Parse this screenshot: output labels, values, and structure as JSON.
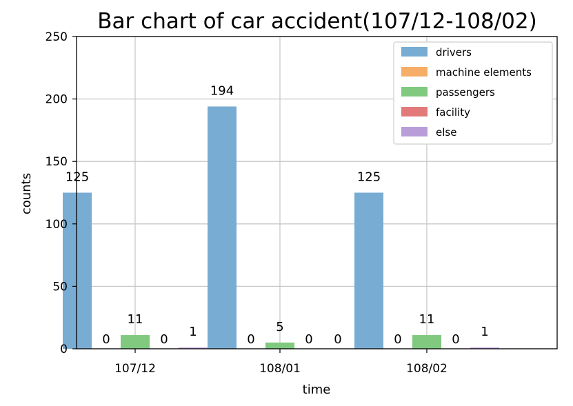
{
  "chart_data": {
    "type": "bar",
    "title": "Bar chart of car accident(107/12-108/02)",
    "xlabel": "time",
    "ylabel": "counts",
    "categories": [
      "107/12",
      "108/01",
      "108/02"
    ],
    "ylim": [
      0,
      250
    ],
    "yticks": [
      0,
      50,
      100,
      150,
      200,
      250
    ],
    "grid": true,
    "legend_position": "top-right",
    "series": [
      {
        "name": "drivers",
        "color": "#78acd3",
        "values": [
          125,
          194,
          125
        ]
      },
      {
        "name": "machine elements",
        "color": "#f6ad67",
        "values": [
          0,
          0,
          0
        ]
      },
      {
        "name": "passengers",
        "color": "#80c97f",
        "values": [
          11,
          5,
          11
        ]
      },
      {
        "name": "facility",
        "color": "#e27a7a",
        "values": [
          0,
          0,
          0
        ]
      },
      {
        "name": "else",
        "color": "#b89dd9",
        "values": [
          1,
          0,
          1
        ]
      }
    ]
  }
}
